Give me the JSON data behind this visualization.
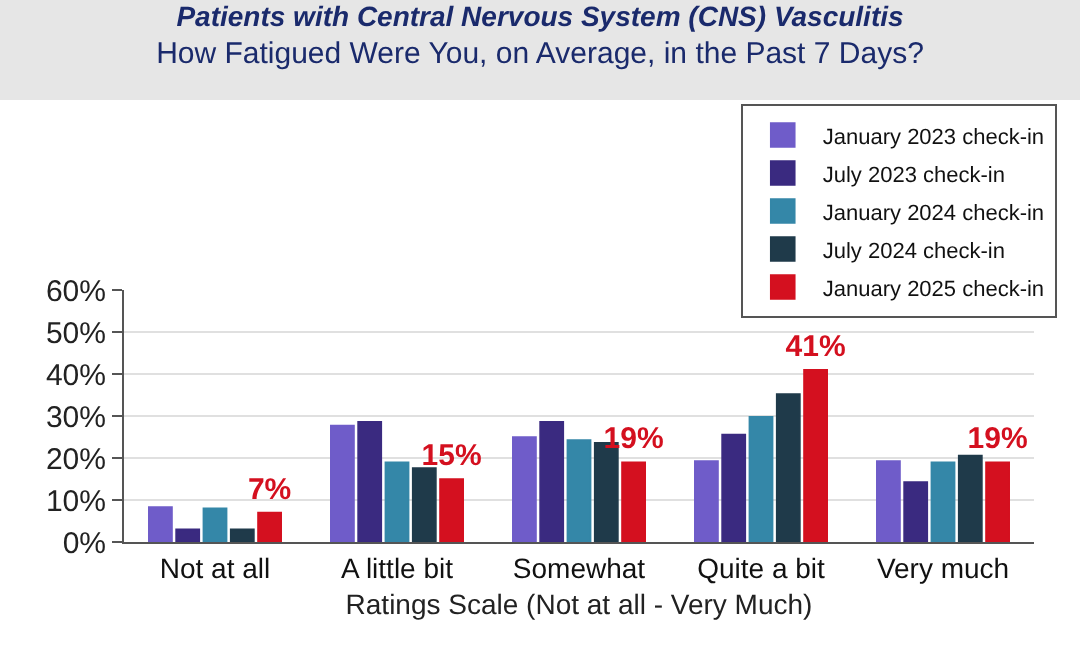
{
  "chart_data": {
    "type": "bar",
    "title": "Patients with Central Nervous System (CNS) Vasculitis",
    "subtitle": "How Fatigued Were You, on Average, in the Past 7 Days?",
    "xlabel": "Ratings Scale (Not at all - Very Much)",
    "categories": [
      "Not at all",
      "A little bit",
      "Somewhat",
      "Quite a bit",
      "Very much"
    ],
    "series": [
      {
        "name": "January 2023 check-in",
        "color": "#6f5cc9",
        "values": [
          8.3,
          27.7,
          25,
          19.3,
          19.3
        ]
      },
      {
        "name": "July 2023 check-in",
        "color": "#3a2a80",
        "values": [
          3,
          28.6,
          28.6,
          25.6,
          14.3
        ]
      },
      {
        "name": "January 2024 check-in",
        "color": "#3487a8",
        "values": [
          8,
          19,
          24.3,
          29.8,
          19
        ]
      },
      {
        "name": "July 2024 check-in",
        "color": "#1f3a4a",
        "values": [
          3,
          17.6,
          23.6,
          35.2,
          20.6
        ]
      },
      {
        "name": "January 2025 check-in",
        "color": "#d4101f",
        "values": [
          7,
          15,
          19,
          41,
          19
        ],
        "value_labels": [
          "7%",
          "15%",
          "19%",
          "41%",
          "19%"
        ]
      }
    ],
    "ylim": [
      0,
      60
    ],
    "yticks": [
      {
        "value": 0,
        "label": "0%"
      },
      {
        "value": 10,
        "label": "10%"
      },
      {
        "value": 20,
        "label": "20%"
      },
      {
        "value": 30,
        "label": "30%"
      },
      {
        "value": 40,
        "label": "40%"
      },
      {
        "value": 50,
        "label": "50%"
      },
      {
        "value": 60,
        "label": "60%"
      }
    ],
    "grid": "y",
    "legend": "top right"
  }
}
